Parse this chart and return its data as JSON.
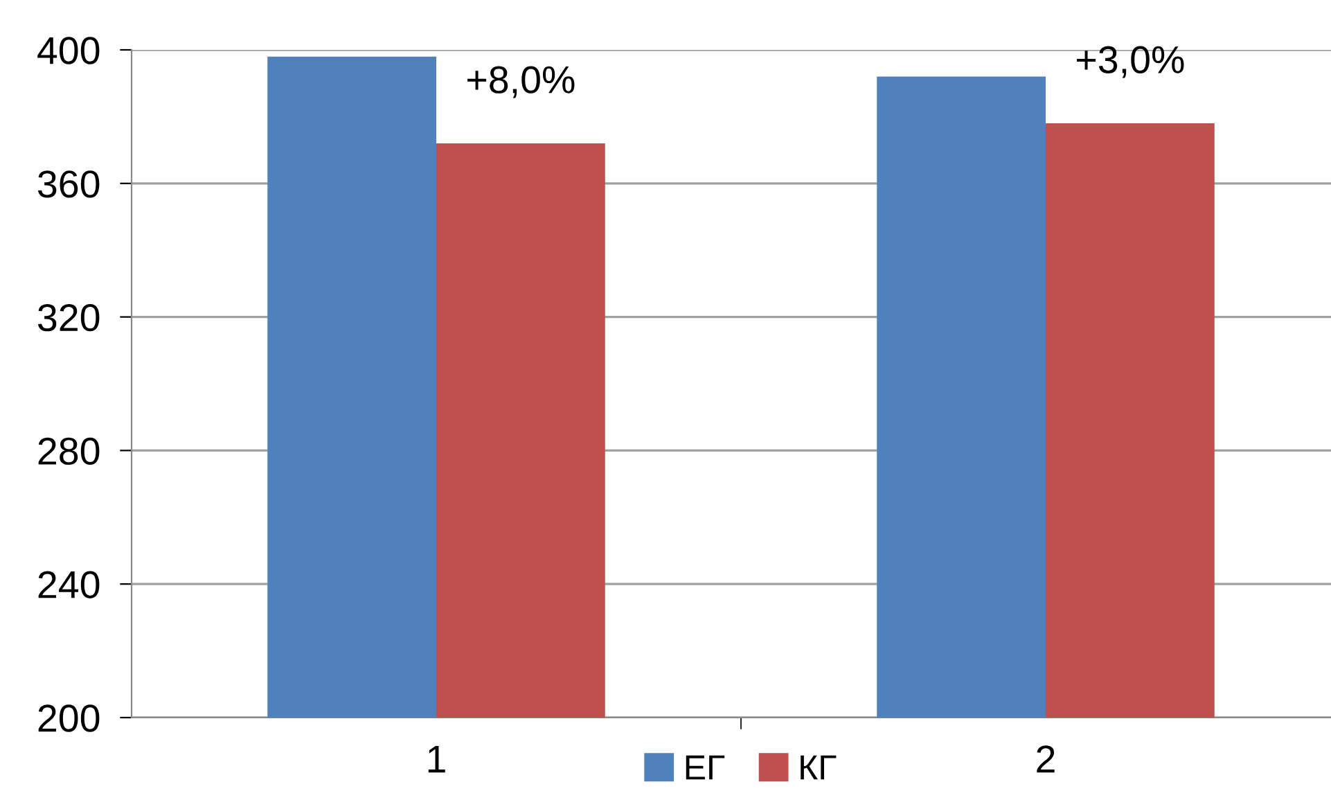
{
  "chart_data": {
    "type": "bar",
    "categories": [
      "1",
      "2"
    ],
    "series": [
      {
        "name": "ЕГ",
        "color": "#4f81bd",
        "values": [
          398,
          392
        ]
      },
      {
        "name": "КГ",
        "color": "#c0504d",
        "values": [
          372,
          378
        ]
      }
    ],
    "ylim": [
      200,
      400
    ],
    "yticks": [
      200,
      240,
      280,
      320,
      360,
      400
    ],
    "grid": "y",
    "legend": "bottom",
    "annotations": [
      {
        "text": "+8,0%",
        "x": "1",
        "y": 372
      },
      {
        "text": "+3,0%",
        "x": "2",
        "y": 378
      }
    ]
  }
}
